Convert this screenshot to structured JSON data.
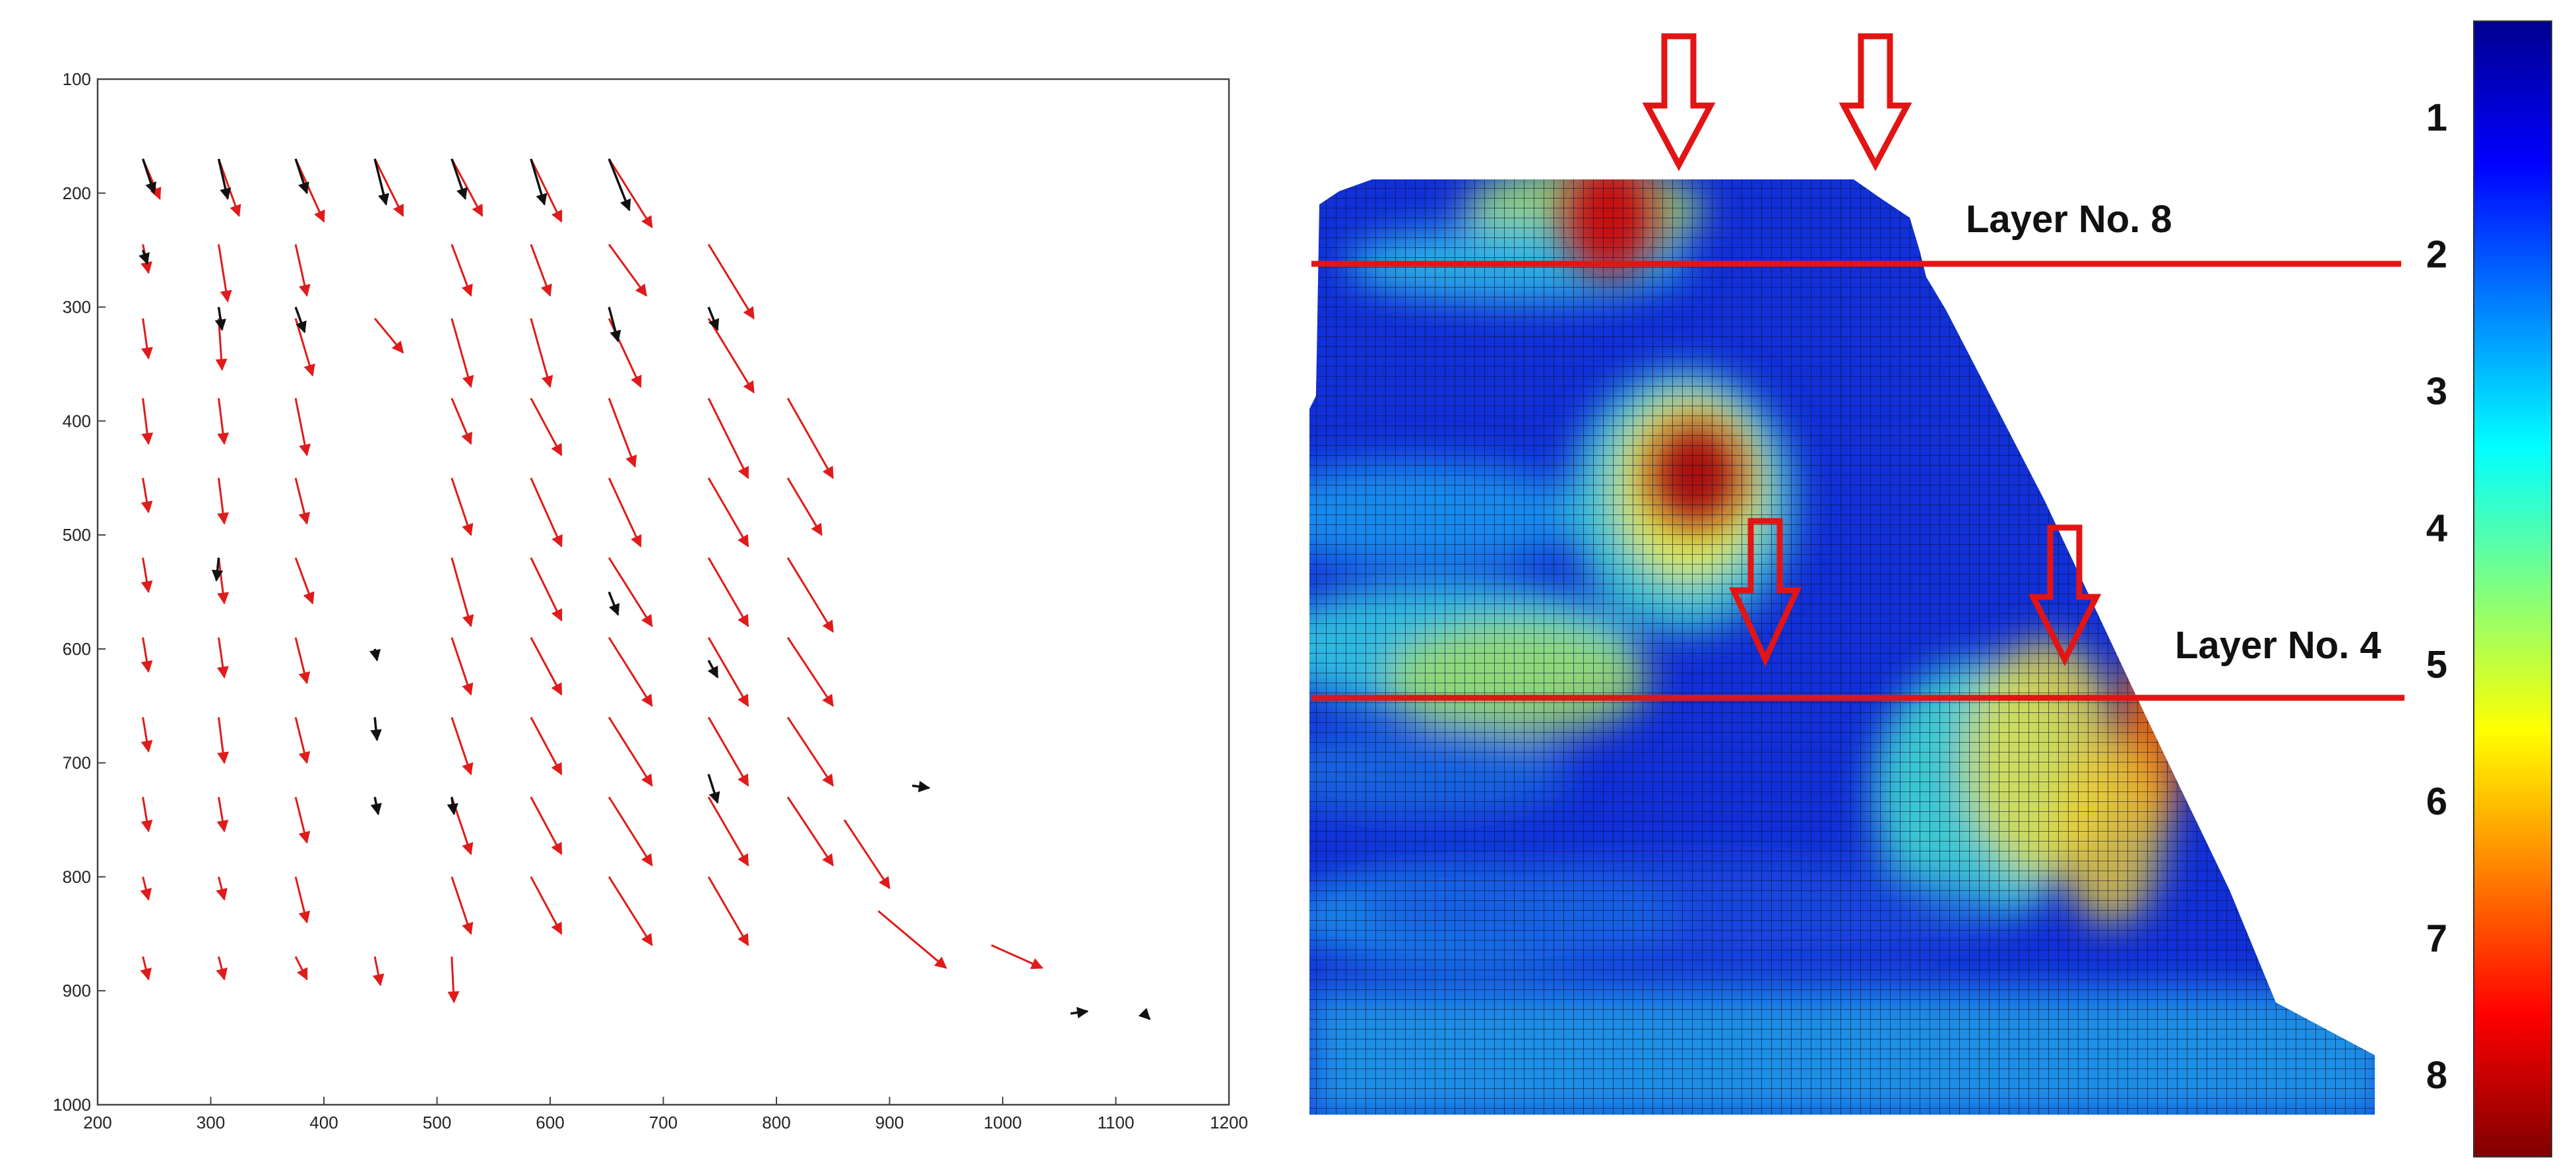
{
  "colors": {
    "vector_current": "#e01b1b",
    "vector_previous": "#111111",
    "annotation_red": "#e31414",
    "colormap": [
      "#7f0000",
      "#ff0000",
      "#ff8000",
      "#ffff00",
      "#80ff80",
      "#00ffff",
      "#0080ff",
      "#0000ff",
      "#00008f"
    ]
  },
  "icons": {
    "load_arrow": "down-arrow-outline-icon"
  },
  "chart_data": [
    {
      "type": "quiver",
      "title": "",
      "xlabel": "",
      "ylabel": "",
      "xlim": [
        200,
        1200
      ],
      "ylim": [
        1000,
        100
      ],
      "y_inverted": true,
      "x_ticks": [
        200,
        300,
        400,
        500,
        600,
        700,
        800,
        900,
        1000,
        1100,
        1200
      ],
      "y_ticks": [
        100,
        200,
        300,
        400,
        500,
        600,
        700,
        800,
        900,
        1000
      ],
      "grid": false,
      "series": [
        {
          "role": "red displacement vectors",
          "vectors": [
            [
              240,
              170,
              255,
              205
            ],
            [
              307,
              170,
              325,
              220
            ],
            [
              375,
              170,
              400,
              225
            ],
            [
              445,
              170,
              470,
              220
            ],
            [
              513,
              170,
              540,
              220
            ],
            [
              583,
              170,
              610,
              225
            ],
            [
              652,
              170,
              690,
              230
            ],
            [
              240,
              245,
              245,
              270
            ],
            [
              307,
              245,
              315,
              295
            ],
            [
              375,
              245,
              385,
              290
            ],
            [
              513,
              245,
              530,
              290
            ],
            [
              583,
              245,
              600,
              290
            ],
            [
              652,
              245,
              685,
              290
            ],
            [
              740,
              245,
              780,
              310
            ],
            [
              240,
              310,
              245,
              345
            ],
            [
              307,
              310,
              310,
              355
            ],
            [
              375,
              310,
              390,
              360
            ],
            [
              445,
              310,
              470,
              340
            ],
            [
              513,
              310,
              530,
              370
            ],
            [
              583,
              310,
              600,
              370
            ],
            [
              652,
              310,
              680,
              370
            ],
            [
              740,
              310,
              780,
              375
            ],
            [
              240,
              380,
              245,
              420
            ],
            [
              307,
              380,
              312,
              420
            ],
            [
              375,
              380,
              385,
              430
            ],
            [
              513,
              380,
              530,
              420
            ],
            [
              583,
              380,
              610,
              430
            ],
            [
              652,
              380,
              675,
              440
            ],
            [
              740,
              380,
              775,
              450
            ],
            [
              810,
              380,
              850,
              450
            ],
            [
              240,
              450,
              245,
              480
            ],
            [
              307,
              450,
              312,
              490
            ],
            [
              375,
              450,
              385,
              490
            ],
            [
              513,
              450,
              530,
              500
            ],
            [
              583,
              450,
              610,
              510
            ],
            [
              652,
              450,
              680,
              510
            ],
            [
              740,
              450,
              775,
              510
            ],
            [
              810,
              450,
              840,
              500
            ],
            [
              240,
              520,
              245,
              550
            ],
            [
              307,
              520,
              312,
              560
            ],
            [
              375,
              520,
              390,
              560
            ],
            [
              513,
              520,
              530,
              580
            ],
            [
              583,
              520,
              610,
              575
            ],
            [
              652,
              520,
              690,
              580
            ],
            [
              740,
              520,
              775,
              580
            ],
            [
              810,
              520,
              850,
              585
            ],
            [
              240,
              590,
              245,
              620
            ],
            [
              307,
              590,
              312,
              625
            ],
            [
              375,
              590,
              385,
              630
            ],
            [
              513,
              590,
              530,
              640
            ],
            [
              583,
              590,
              610,
              640
            ],
            [
              652,
              590,
              690,
              650
            ],
            [
              740,
              590,
              775,
              650
            ],
            [
              810,
              590,
              850,
              650
            ],
            [
              240,
              660,
              245,
              690
            ],
            [
              307,
              660,
              312,
              700
            ],
            [
              375,
              660,
              385,
              700
            ],
            [
              513,
              660,
              530,
              710
            ],
            [
              583,
              660,
              610,
              710
            ],
            [
              652,
              660,
              690,
              720
            ],
            [
              740,
              660,
              775,
              720
            ],
            [
              810,
              660,
              850,
              720
            ],
            [
              240,
              730,
              245,
              760
            ],
            [
              307,
              730,
              312,
              760
            ],
            [
              375,
              730,
              385,
              770
            ],
            [
              513,
              730,
              530,
              780
            ],
            [
              583,
              730,
              610,
              780
            ],
            [
              652,
              730,
              690,
              790
            ],
            [
              740,
              730,
              775,
              790
            ],
            [
              810,
              730,
              850,
              790
            ],
            [
              240,
              800,
              245,
              820
            ],
            [
              307,
              800,
              312,
              820
            ],
            [
              375,
              800,
              385,
              840
            ],
            [
              513,
              800,
              530,
              850
            ],
            [
              583,
              800,
              610,
              850
            ],
            [
              652,
              800,
              690,
              860
            ],
            [
              740,
              800,
              775,
              860
            ],
            [
              240,
              870,
              245,
              890
            ],
            [
              307,
              870,
              312,
              890
            ],
            [
              375,
              870,
              385,
              890
            ],
            [
              445,
              870,
              450,
              895
            ],
            [
              513,
              870,
              515,
              910
            ],
            [
              990,
              860,
              1035,
              880
            ],
            [
              890,
              830,
              950,
              880
            ],
            [
              860,
              750,
              900,
              810
            ]
          ]
        },
        {
          "role": "black displacement vectors",
          "vectors": [
            [
              240,
              170,
              250,
              200
            ],
            [
              307,
              170,
              315,
              205
            ],
            [
              375,
              170,
              385,
              200
            ],
            [
              445,
              170,
              455,
              210
            ],
            [
              513,
              170,
              525,
              205
            ],
            [
              583,
              170,
              595,
              210
            ],
            [
              652,
              170,
              670,
              215
            ],
            [
              240,
              250,
              244,
              262
            ],
            [
              307,
              300,
              310,
              320
            ],
            [
              375,
              300,
              383,
              322
            ],
            [
              652,
              300,
              660,
              330
            ],
            [
              740,
              300,
              748,
              320
            ],
            [
              307,
              520,
              305,
              540
            ],
            [
              652,
              550,
              660,
              570
            ],
            [
              445,
              600,
              447,
              610
            ],
            [
              740,
              610,
              748,
              625
            ],
            [
              445,
              660,
              447,
              680
            ],
            [
              445,
              730,
              448,
              745
            ],
            [
              513,
              730,
              515,
              745
            ],
            [
              740,
              710,
              748,
              735
            ],
            [
              920,
              720,
              935,
              722
            ],
            [
              1060,
              920,
              1075,
              918
            ],
            [
              1125,
              920,
              1130,
              925
            ]
          ]
        }
      ]
    },
    {
      "type": "heatmap",
      "title": "",
      "colorbar_labels": [
        "1",
        "2",
        "3",
        "4",
        "5",
        "6",
        "7",
        "8"
      ],
      "annotations": [
        "Layer No. 8",
        "Layer No. 4"
      ],
      "hotspots": [
        {
          "level": 8,
          "x": 0.25,
          "y": 0.05
        },
        {
          "level": 8,
          "x": 0.35,
          "y": 0.38
        },
        {
          "level": 7,
          "x": 0.8,
          "y": 0.66
        },
        {
          "level": 5,
          "x": 0.2,
          "y": 0.6
        },
        {
          "level": 4,
          "x": 0.1,
          "y": 0.42
        }
      ]
    }
  ]
}
